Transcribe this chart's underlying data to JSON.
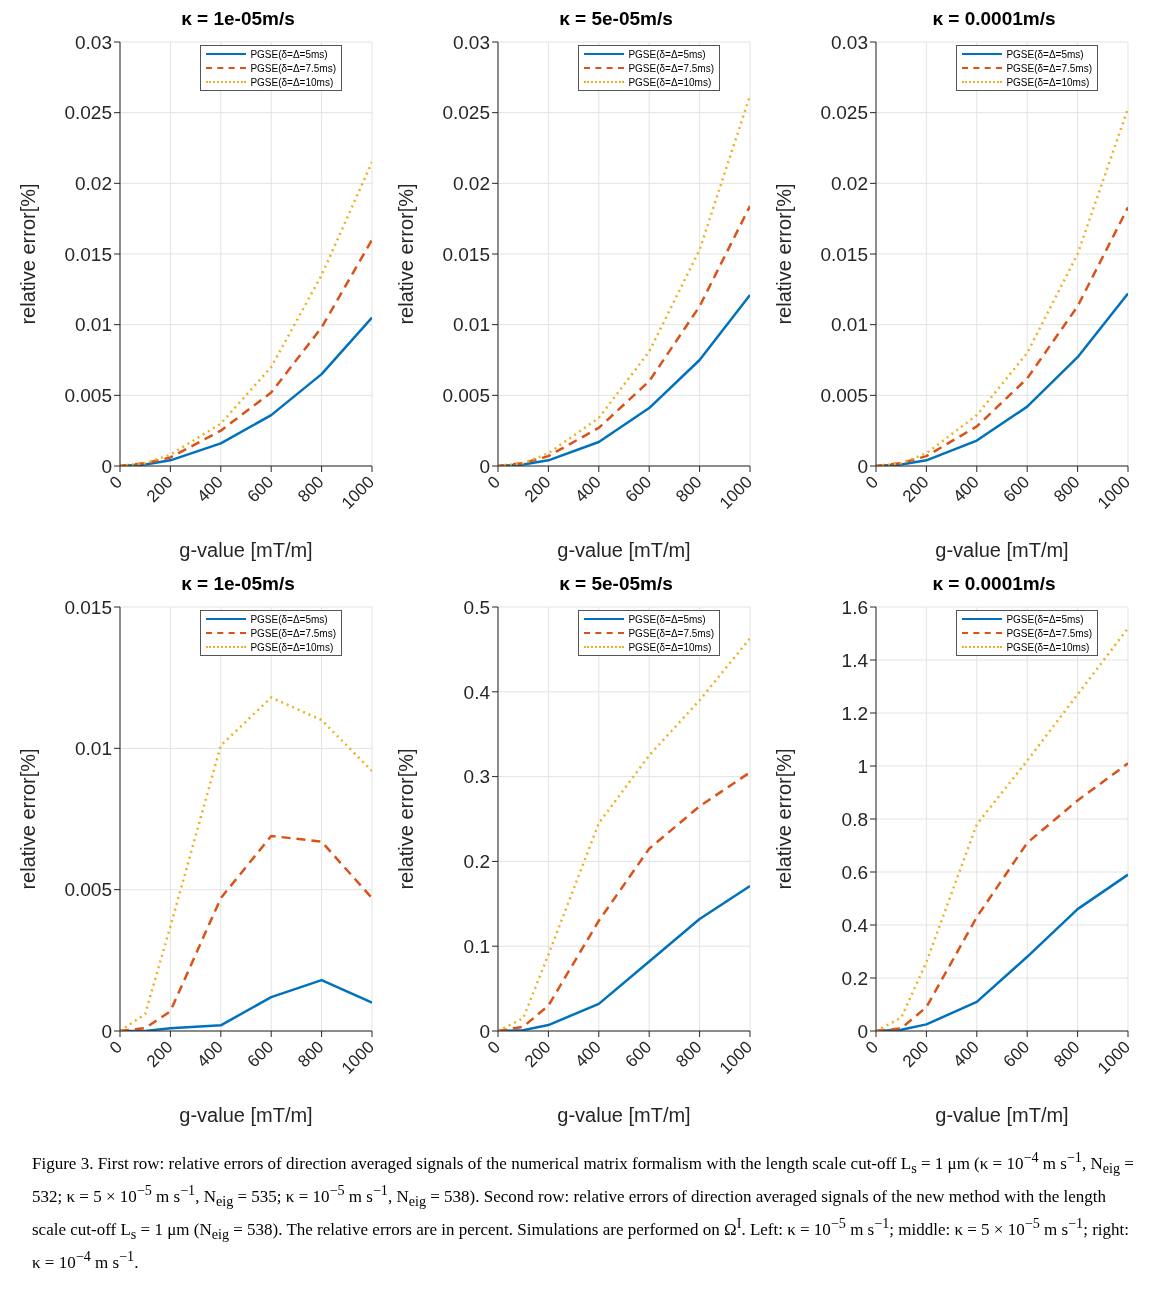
{
  "chart_data": [
    {
      "type": "line",
      "title": "κ = 1e-05m/s",
      "xlabel": "g-value [mT/m]",
      "ylabel": "relative error[%]",
      "x": [
        0,
        100,
        200,
        400,
        600,
        800,
        1000
      ],
      "xlim": [
        0,
        1000
      ],
      "xticks": [
        0,
        200,
        400,
        600,
        800,
        1000
      ],
      "ylim": [
        0,
        0.03
      ],
      "yticks": [
        0,
        0.005,
        0.01,
        0.015,
        0.02,
        0.025,
        0.03
      ],
      "grid": true,
      "legend": "top right",
      "series": [
        {
          "name": "PGSE(δ=Δ=5ms)",
          "color": "#0072bd",
          "line_style": "solid",
          "values": [
            0,
            0.0001,
            0.0004,
            0.0016,
            0.0036,
            0.0065,
            0.0105
          ]
        },
        {
          "name": "PGSE(δ=Δ=7.5ms)",
          "color": "#d95319",
          "line_style": "dashed",
          "values": [
            0,
            0.0002,
            0.0006,
            0.0025,
            0.0052,
            0.0098,
            0.016
          ]
        },
        {
          "name": "PGSE(δ=Δ=10ms)",
          "color": "#edb120",
          "line_style": "dotted",
          "values": [
            0,
            0.0002,
            0.0008,
            0.003,
            0.007,
            0.0135,
            0.0215
          ]
        }
      ]
    },
    {
      "type": "line",
      "title": "κ = 5e-05m/s",
      "xlabel": "g-value [mT/m]",
      "ylabel": "relative error[%]",
      "x": [
        0,
        100,
        200,
        400,
        600,
        800,
        1000
      ],
      "xlim": [
        0,
        1000
      ],
      "xticks": [
        0,
        200,
        400,
        600,
        800,
        1000
      ],
      "ylim": [
        0,
        0.03
      ],
      "yticks": [
        0,
        0.005,
        0.01,
        0.015,
        0.02,
        0.025,
        0.03
      ],
      "grid": true,
      "legend": "top right",
      "series": [
        {
          "name": "PGSE(δ=Δ=5ms)",
          "color": "#0072bd",
          "line_style": "solid",
          "values": [
            0,
            0.0001,
            0.0004,
            0.0017,
            0.0041,
            0.0075,
            0.0121
          ]
        },
        {
          "name": "PGSE(δ=Δ=7.5ms)",
          "color": "#d95319",
          "line_style": "dashed",
          "values": [
            0,
            0.0002,
            0.0007,
            0.0027,
            0.006,
            0.0113,
            0.0184
          ]
        },
        {
          "name": "PGSE(δ=Δ=10ms)",
          "color": "#edb120",
          "line_style": "dotted",
          "values": [
            0,
            0.0002,
            0.0009,
            0.0034,
            0.0081,
            0.0153,
            0.0262
          ]
        }
      ]
    },
    {
      "type": "line",
      "title": "κ = 0.0001m/s",
      "xlabel": "g-value [mT/m]",
      "ylabel": "relative error[%]",
      "x": [
        0,
        100,
        200,
        400,
        600,
        800,
        1000
      ],
      "xlim": [
        0,
        1000
      ],
      "xticks": [
        0,
        200,
        400,
        600,
        800,
        1000
      ],
      "ylim": [
        0,
        0.03
      ],
      "yticks": [
        0,
        0.005,
        0.01,
        0.015,
        0.02,
        0.025,
        0.03
      ],
      "grid": true,
      "legend": "top right",
      "series": [
        {
          "name": "PGSE(δ=Δ=5ms)",
          "color": "#0072bd",
          "line_style": "solid",
          "values": [
            0,
            0.0001,
            0.0004,
            0.0018,
            0.0042,
            0.0077,
            0.0122
          ]
        },
        {
          "name": "PGSE(δ=Δ=7.5ms)",
          "color": "#d95319",
          "line_style": "dashed",
          "values": [
            0,
            0.0002,
            0.0007,
            0.0028,
            0.0062,
            0.0113,
            0.0183
          ]
        },
        {
          "name": "PGSE(δ=Δ=10ms)",
          "color": "#edb120",
          "line_style": "dotted",
          "values": [
            0,
            0.0002,
            0.0009,
            0.0036,
            0.008,
            0.015,
            0.0253
          ]
        }
      ]
    },
    {
      "type": "line",
      "title": "κ = 1e-05m/s",
      "xlabel": "g-value [mT/m]",
      "ylabel": "relative error[%]",
      "x": [
        0,
        100,
        200,
        400,
        600,
        800,
        1000
      ],
      "xlim": [
        0,
        1000
      ],
      "xticks": [
        0,
        200,
        400,
        600,
        800,
        1000
      ],
      "ylim": [
        0,
        0.015
      ],
      "yticks": [
        0,
        0.005,
        0.01,
        0.015
      ],
      "grid": true,
      "legend": "top right",
      "series": [
        {
          "name": "PGSE(δ=Δ=5ms)",
          "color": "#0072bd",
          "line_style": "solid",
          "values": [
            0,
            0,
            0.0001,
            0.0002,
            0.0012,
            0.0018,
            0.001
          ]
        },
        {
          "name": "PGSE(δ=Δ=7.5ms)",
          "color": "#d95319",
          "line_style": "dashed",
          "values": [
            0,
            0.0001,
            0.0007,
            0.0047,
            0.0069,
            0.0067,
            0.0047
          ]
        },
        {
          "name": "PGSE(δ=Δ=10ms)",
          "color": "#edb120",
          "line_style": "dotted",
          "values": [
            0,
            0.0006,
            0.0037,
            0.0101,
            0.0118,
            0.011,
            0.0092
          ]
        }
      ]
    },
    {
      "type": "line",
      "title": "κ = 5e-05m/s",
      "xlabel": "g-value [mT/m]",
      "ylabel": "relative error[%]",
      "x": [
        0,
        100,
        200,
        400,
        600,
        800,
        1000
      ],
      "xlim": [
        0,
        1000
      ],
      "xticks": [
        0,
        200,
        400,
        600,
        800,
        1000
      ],
      "ylim": [
        0,
        0.5
      ],
      "yticks": [
        0,
        0.1,
        0.2,
        0.3,
        0.4,
        0.5
      ],
      "grid": true,
      "legend": "top right",
      "series": [
        {
          "name": "PGSE(δ=Δ=5ms)",
          "color": "#0072bd",
          "line_style": "solid",
          "values": [
            0,
            0.001,
            0.007,
            0.032,
            0.082,
            0.132,
            0.171
          ]
        },
        {
          "name": "PGSE(δ=Δ=7.5ms)",
          "color": "#d95319",
          "line_style": "dashed",
          "values": [
            0,
            0.005,
            0.03,
            0.13,
            0.215,
            0.265,
            0.305
          ]
        },
        {
          "name": "PGSE(δ=Δ=10ms)",
          "color": "#edb120",
          "line_style": "dotted",
          "values": [
            0,
            0.015,
            0.09,
            0.245,
            0.325,
            0.39,
            0.463
          ]
        }
      ]
    },
    {
      "type": "line",
      "title": "κ = 0.0001m/s",
      "xlabel": "g-value [mT/m]",
      "ylabel": "relative error[%]",
      "x": [
        0,
        100,
        200,
        400,
        600,
        800,
        1000
      ],
      "xlim": [
        0,
        1000
      ],
      "xticks": [
        0,
        200,
        400,
        600,
        800,
        1000
      ],
      "ylim": [
        0,
        1.6
      ],
      "yticks": [
        0,
        0.2,
        0.4,
        0.6,
        0.8,
        1,
        1.2,
        1.4,
        1.6
      ],
      "grid": true,
      "legend": "top right",
      "annotations": [
        "Figure 3. First row: relative errors of direction averaged signals of the numerical matrix formalism with the length scale cut-off L$_{s}$ = 1 μm (κ = 10$^{−4}$ m s$^{−1}$, N$_{eig}$ = 532; κ = 5 × 10$^{−5}$ m s$^{−1}$, N$_{eig}$ = 535; κ = 10$^{−5}$ m s$^{−1}$, N$_{eig}$ = 538). Second row: relative errors of direction averaged signals of the new method with the length scale cut-off L$_{s}$ = 1 μm (N$_{eig}$ = 538). The relative errors are in percent. Simulations are performed on Ω$^{I}$. Left: κ = 10$^{−5}$ m s$^{−1}$; middle: κ = 5 × 10$^{−5}$ m s$^{−1}$; right: κ = 10$^{−4}$ m s$^{−1}$."
      ],
      "series": [
        {
          "name": "PGSE(δ=Δ=5ms)",
          "color": "#0072bd",
          "line_style": "solid",
          "values": [
            0,
            0.005,
            0.025,
            0.11,
            0.28,
            0.46,
            0.59
          ]
        },
        {
          "name": "PGSE(δ=Δ=7.5ms)",
          "color": "#d95319",
          "line_style": "dashed",
          "values": [
            0,
            0.01,
            0.09,
            0.43,
            0.71,
            0.87,
            1.01
          ]
        },
        {
          "name": "PGSE(δ=Δ=10ms)",
          "color": "#edb120",
          "line_style": "dotted",
          "values": [
            0,
            0.05,
            0.26,
            0.78,
            1.02,
            1.27,
            1.52
          ]
        }
      ]
    }
  ]
}
